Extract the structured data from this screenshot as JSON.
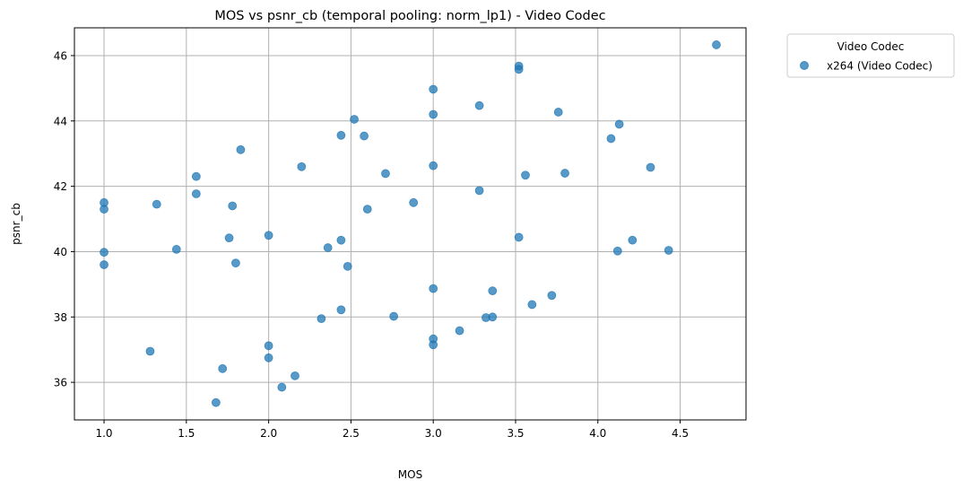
{
  "chart_data": {
    "type": "scatter",
    "title": "MOS vs psnr_cb (temporal pooling: norm_lp1) - Video Codec",
    "xlabel": "MOS",
    "ylabel": "psnr_cb",
    "xlim": [
      0.82,
      4.9
    ],
    "ylim": [
      34.85,
      46.85
    ],
    "xticks": [
      1.0,
      1.5,
      2.0,
      2.5,
      3.0,
      3.5,
      4.0,
      4.5
    ],
    "xtick_labels": [
      "1.0",
      "1.5",
      "2.0",
      "2.5",
      "3.0",
      "3.5",
      "4.0",
      "4.5"
    ],
    "yticks": [
      36,
      38,
      40,
      42,
      44,
      46
    ],
    "ytick_labels": [
      "36",
      "38",
      "40",
      "42",
      "44",
      "46"
    ],
    "grid": true,
    "legend": {
      "title": "Video Codec",
      "placement": "outside-top-right"
    },
    "series": [
      {
        "name": "x264 (Video Codec)",
        "color": "#1f77b4",
        "alpha": 0.75,
        "points": [
          [
            1.0,
            41.5
          ],
          [
            1.0,
            41.3
          ],
          [
            1.0,
            39.98
          ],
          [
            1.0,
            39.6
          ],
          [
            1.28,
            36.95
          ],
          [
            1.32,
            41.45
          ],
          [
            1.44,
            40.07
          ],
          [
            1.56,
            42.3
          ],
          [
            1.56,
            41.77
          ],
          [
            1.68,
            35.38
          ],
          [
            1.72,
            36.42
          ],
          [
            1.76,
            40.42
          ],
          [
            1.78,
            41.4
          ],
          [
            1.8,
            39.65
          ],
          [
            1.83,
            43.12
          ],
          [
            2.0,
            40.5
          ],
          [
            2.0,
            37.12
          ],
          [
            2.0,
            36.75
          ],
          [
            2.08,
            35.85
          ],
          [
            2.16,
            36.2
          ],
          [
            2.2,
            42.6
          ],
          [
            2.32,
            37.95
          ],
          [
            2.36,
            40.12
          ],
          [
            2.44,
            43.56
          ],
          [
            2.44,
            40.35
          ],
          [
            2.44,
            38.22
          ],
          [
            2.48,
            39.55
          ],
          [
            2.52,
            44.05
          ],
          [
            2.58,
            43.54
          ],
          [
            2.6,
            41.3
          ],
          [
            2.71,
            42.39
          ],
          [
            2.76,
            38.02
          ],
          [
            2.88,
            41.5
          ],
          [
            3.0,
            44.97
          ],
          [
            3.0,
            44.2
          ],
          [
            3.0,
            42.63
          ],
          [
            3.0,
            38.87
          ],
          [
            3.0,
            37.33
          ],
          [
            3.0,
            37.15
          ],
          [
            3.16,
            37.58
          ],
          [
            3.28,
            44.47
          ],
          [
            3.28,
            41.87
          ],
          [
            3.32,
            37.98
          ],
          [
            3.36,
            38.8
          ],
          [
            3.36,
            38.0
          ],
          [
            3.52,
            45.68
          ],
          [
            3.52,
            45.58
          ],
          [
            3.52,
            40.44
          ],
          [
            3.56,
            42.34
          ],
          [
            3.6,
            38.38
          ],
          [
            3.72,
            38.66
          ],
          [
            3.76,
            44.27
          ],
          [
            3.8,
            42.4
          ],
          [
            4.08,
            43.46
          ],
          [
            4.12,
            40.02
          ],
          [
            4.13,
            43.9
          ],
          [
            4.21,
            40.35
          ],
          [
            4.32,
            42.58
          ],
          [
            4.43,
            40.04
          ],
          [
            4.72,
            46.33
          ]
        ]
      }
    ]
  }
}
